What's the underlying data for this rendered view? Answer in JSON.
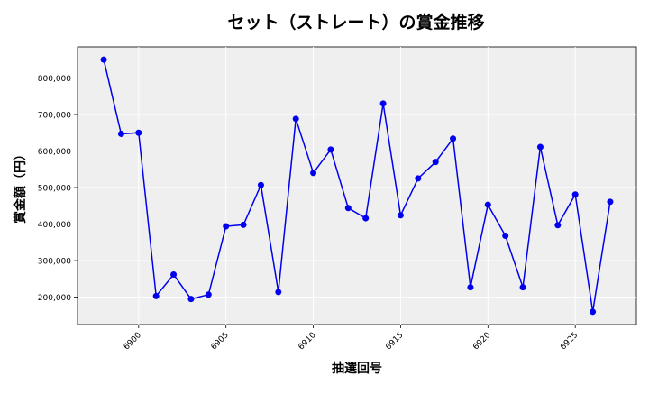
{
  "chart_data": {
    "type": "line",
    "title": "セット（ストレート）の賞金推移",
    "xlabel": "抽選回号",
    "ylabel": "賞金額（円）",
    "xlim": [
      6896.5,
      6928.5
    ],
    "ylim": [
      125000,
      885000
    ],
    "x_ticks": [
      6900,
      6905,
      6910,
      6915,
      6920,
      6925
    ],
    "y_ticks": [
      200000,
      300000,
      400000,
      500000,
      600000,
      700000,
      800000
    ],
    "y_tick_labels": [
      "200,000",
      "300,000",
      "400,000",
      "500,000",
      "600,000",
      "700,000",
      "800,000"
    ],
    "grid": true,
    "series": [
      {
        "color": "#0000ee",
        "x": [
          6898,
          6899,
          6900,
          6901,
          6902,
          6903,
          6904,
          6905,
          6906,
          6907,
          6908,
          6909,
          6910,
          6911,
          6912,
          6913,
          6914,
          6915,
          6916,
          6917,
          6918,
          6919,
          6920,
          6921,
          6922,
          6923,
          6924,
          6925,
          6926,
          6927
        ],
        "values": [
          850000,
          647000,
          650000,
          203000,
          262000,
          195000,
          207000,
          394000,
          398000,
          507000,
          214000,
          688000,
          540000,
          604000,
          444000,
          416000,
          730000,
          424000,
          525000,
          570000,
          634000,
          227000,
          453000,
          368000,
          227000,
          611000,
          397000,
          481000,
          160000,
          461000
        ]
      }
    ]
  }
}
